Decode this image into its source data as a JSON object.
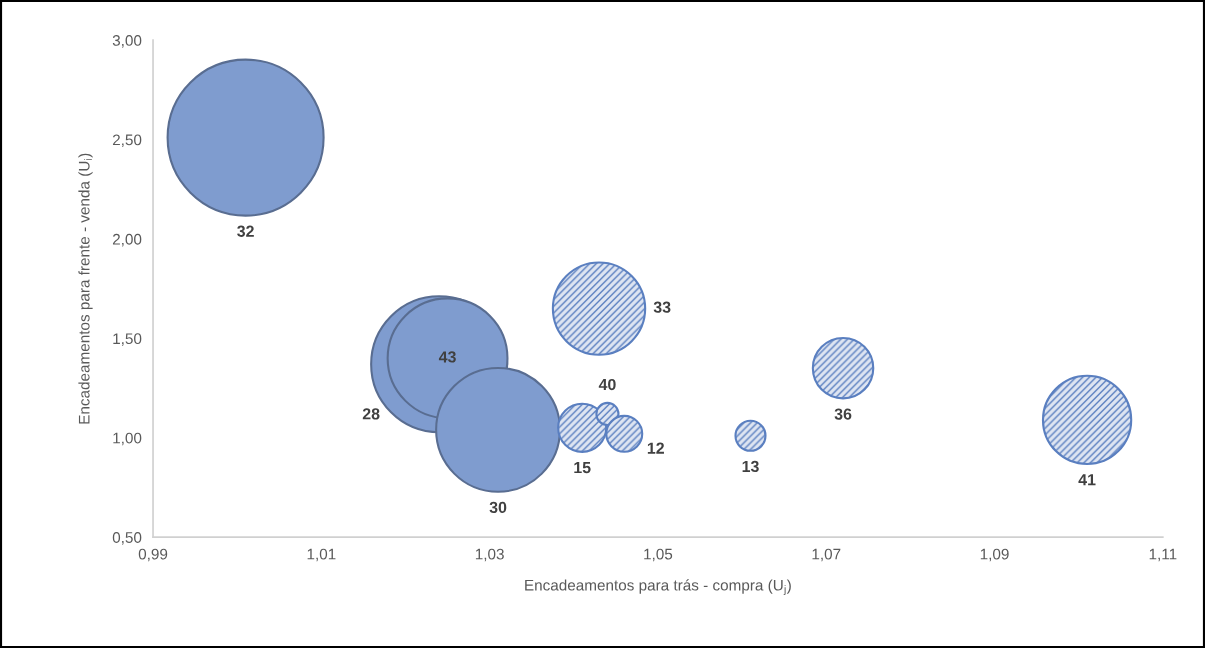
{
  "chart_data": {
    "type": "bubble",
    "xlabel": "Encadeamentos para trás - compra (U$_{j}$)",
    "ylabel": "Encadeamentos para frente - venda (U$_{i}$)",
    "xlim": [
      0.99,
      1.11
    ],
    "xticks": [
      {
        "value": 0.99,
        "label": "0,99"
      },
      {
        "value": 1.01,
        "label": "1,01"
      },
      {
        "value": 1.03,
        "label": "1,03"
      },
      {
        "value": 1.05,
        "label": "1,05"
      },
      {
        "value": 1.07,
        "label": "1,07"
      },
      {
        "value": 1.09,
        "label": "1,09"
      },
      {
        "value": 1.11,
        "label": "1,11"
      }
    ],
    "ylim": [
      0.5,
      3.0
    ],
    "yticks": [
      {
        "value": 0.5,
        "label": "0,50"
      },
      {
        "value": 1.0,
        "label": "1,00"
      },
      {
        "value": 1.5,
        "label": "1,50"
      },
      {
        "value": 2.0,
        "label": "2,00"
      },
      {
        "value": 2.5,
        "label": "2,50"
      },
      {
        "value": 3.0,
        "label": "3,00"
      }
    ],
    "series": [
      {
        "name": "32",
        "color": "#7f9ccf",
        "x": [
          1.001
        ],
        "values": [
          2.51
        ],
        "sizes": [
          1
        ]
      },
      {
        "name": "28",
        "color": "#7f9ccf",
        "x": [
          1.024
        ],
        "values": [
          1.37
        ],
        "sizes": [
          0.76
        ]
      },
      {
        "name": "43",
        "color": "#7f9ccf",
        "x": [
          1.025
        ],
        "values": [
          1.4
        ],
        "sizes": [
          0.59
        ]
      },
      {
        "name": "30",
        "color": "#7f9ccf",
        "x": [
          1.031
        ],
        "values": [
          1.04
        ],
        "sizes": [
          0.63
        ]
      },
      {
        "name": "33",
        "color": "#5a7fc0",
        "x": [
          1.043
        ],
        "values": [
          1.65
        ],
        "sizes": [
          0.35
        ]
      },
      {
        "name": "15",
        "color": "#5a7fc0",
        "x": [
          1.041
        ],
        "values": [
          1.05
        ],
        "sizes": [
          0.095
        ]
      },
      {
        "name": "40",
        "color": "#5a7fc0",
        "x": [
          1.044
        ],
        "values": [
          1.12
        ],
        "sizes": [
          0.02
        ]
      },
      {
        "name": "12",
        "color": "#5a7fc0",
        "x": [
          1.046
        ],
        "values": [
          1.02
        ],
        "sizes": [
          0.053
        ]
      },
      {
        "name": "13",
        "color": "#5a7fc0",
        "x": [
          1.061
        ],
        "values": [
          1.01
        ],
        "sizes": [
          0.037
        ]
      },
      {
        "name": "36",
        "color": "#5a7fc0",
        "x": [
          1.072
        ],
        "values": [
          1.35
        ],
        "sizes": [
          0.15
        ]
      },
      {
        "name": "41",
        "color": "#5a7fc0",
        "x": [
          1.101
        ],
        "values": [
          1.09
        ],
        "sizes": [
          0.32
        ]
      }
    ]
  }
}
